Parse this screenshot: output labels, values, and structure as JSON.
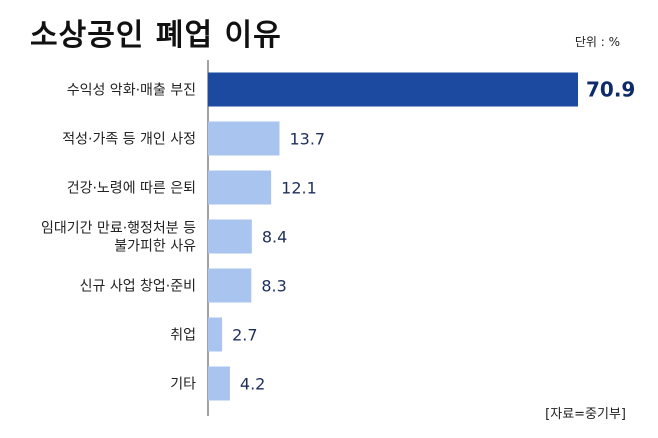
{
  "title": "소상공인 폐업 이유",
  "unit": "단위 : %",
  "source": "[자료=중기부]",
  "colors": {
    "highlight": "#1b4aa0",
    "bar": "#a9c4ef",
    "axis": "#444444"
  },
  "chart_data": {
    "type": "bar",
    "orientation": "horizontal",
    "categories": [
      [
        "수익성 악화·매출 부진"
      ],
      [
        "적성·가족 등 개인 사정"
      ],
      [
        "건강·노령에 따른 은퇴"
      ],
      [
        "임대기간 만료·행정처분 등",
        "불가피한 사유"
      ],
      [
        "신규 사업 창업·준비"
      ],
      [
        "취업"
      ],
      [
        "기타"
      ]
    ],
    "values": [
      70.9,
      13.7,
      12.1,
      8.4,
      8.3,
      2.7,
      4.2
    ],
    "value_labels": [
      "70.9",
      "13.7",
      "12.1",
      "8.4",
      "8.3",
      "2.7",
      "4.2"
    ],
    "highlight_index": 0,
    "xlim": [
      0,
      72
    ],
    "grid": false
  }
}
